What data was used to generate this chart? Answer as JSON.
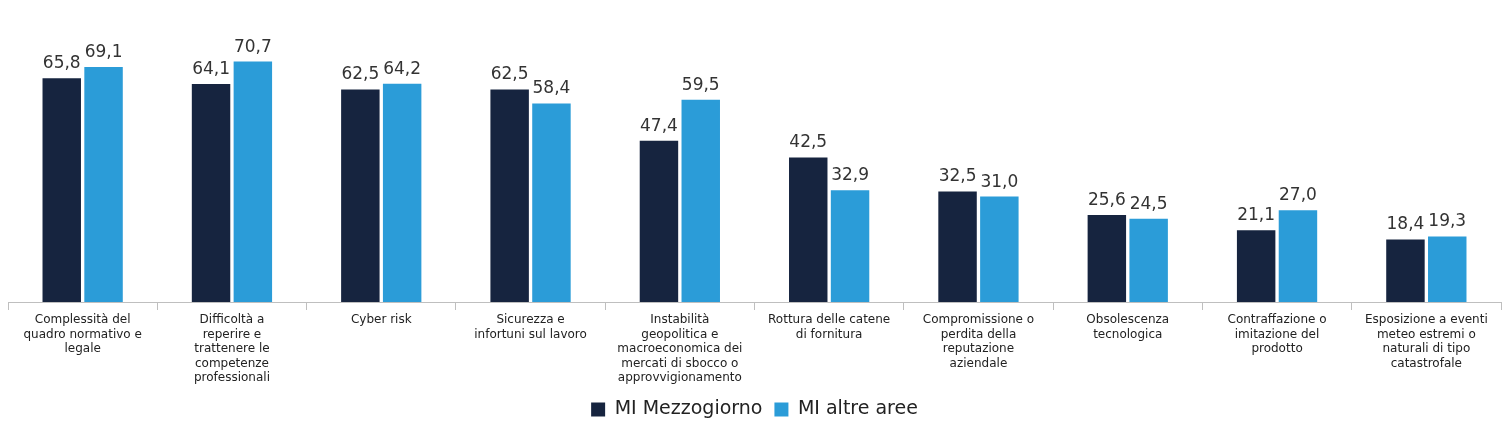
{
  "chart_data": {
    "type": "bar",
    "categories": [
      "Complessità del quadro normativo e legale",
      "Difficoltà a reperire e trattenere le competenze professionali",
      "Cyber risk",
      "Sicurezza e infortuni sul lavoro",
      "Instabilità geopolitica e macroeconomica dei mercati di sbocco o approvvigionamento",
      "Rottura delle catene di fornitura",
      "Compromissione o perdita della reputazione aziendale",
      "Obsolescenza tecnologica",
      "Contraffazione o imitazione del prodotto",
      "Esposizione a eventi meteo estremi o naturali di tipo catastrofale"
    ],
    "series": [
      {
        "name": "MI Mezzogiorno",
        "color": "#16243f",
        "values": [
          65.8,
          64.1,
          62.5,
          62.5,
          47.4,
          42.5,
          32.5,
          25.6,
          21.1,
          18.4
        ],
        "value_labels": [
          "65,8",
          "64,1",
          "62,5",
          "62,5",
          "47,4",
          "42,5",
          "32,5",
          "25,6",
          "21,1",
          "18,4"
        ]
      },
      {
        "name": "MI altre aree",
        "color": "#2b9cd8",
        "values": [
          69.1,
          70.7,
          64.2,
          58.4,
          59.5,
          32.9,
          31.0,
          24.5,
          27.0,
          19.3
        ],
        "value_labels": [
          "69,1",
          "70,7",
          "64,2",
          "58,4",
          "59,5",
          "32,9",
          "31,0",
          "24,5",
          "27,0",
          "19,3"
        ]
      }
    ],
    "tick_labels": "x",
    "legend": "bottom"
  }
}
